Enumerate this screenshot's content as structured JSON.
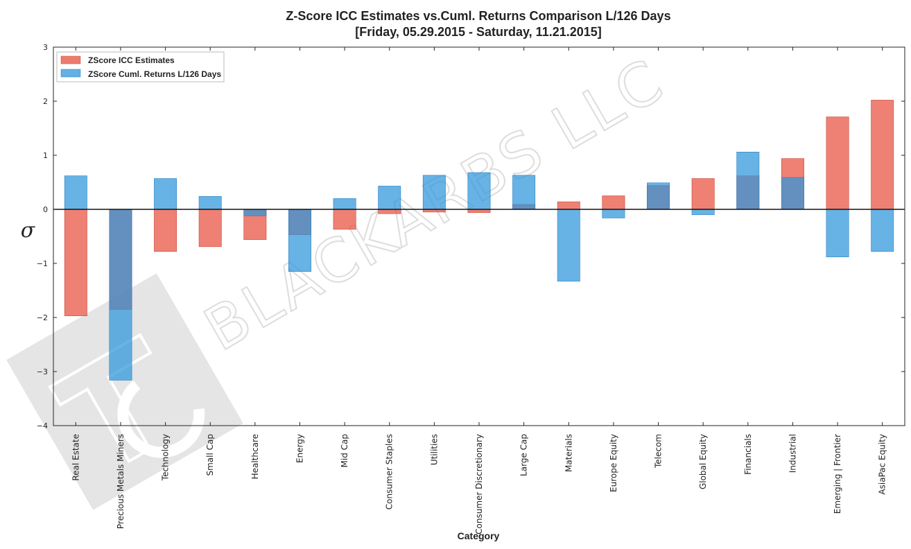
{
  "chart_data": {
    "type": "bar",
    "title_line1": "Z-Score ICC Estimates vs.Cuml. Returns Comparison L/126 Days",
    "title_line2": "[Friday, 05.29.2015 - Saturday, 11.21.2015]",
    "xlabel": "Category",
    "ylabel": "σ",
    "ylim": [
      -4,
      3
    ],
    "yticks": [
      -4,
      -3,
      -2,
      -1,
      0,
      1,
      2,
      3
    ],
    "grid": false,
    "legend_position": "top-left",
    "categories": [
      "Real Estate",
      "Precious Metals Miners",
      "Technology",
      "Small Cap",
      "Healthcare",
      "Energy",
      "Mid Cap",
      "Consumer Staples",
      "Utilities",
      "Consumer Discretionary",
      "Large Cap",
      "Materials",
      "Europe Equity",
      "Telecom",
      "Global Equity",
      "Financials",
      "Industrial",
      "Emerging | Frontier",
      "AsiaPac Equity"
    ],
    "series": [
      {
        "name": "ZScore ICC Estimates",
        "color": "#e8503e",
        "values": [
          -1.97,
          -1.85,
          -0.78,
          -0.69,
          -0.56,
          -0.47,
          -0.37,
          -0.08,
          -0.05,
          -0.06,
          0.09,
          0.14,
          0.25,
          0.44,
          0.57,
          0.62,
          0.94,
          1.71,
          2.02
        ]
      },
      {
        "name": "ZScore Cuml. Returns L/126 Days",
        "color": "#2e95db",
        "values": [
          0.62,
          -3.16,
          0.57,
          0.24,
          -0.12,
          -1.15,
          0.2,
          0.43,
          0.63,
          0.68,
          0.63,
          -1.33,
          -0.16,
          0.49,
          -0.1,
          1.06,
          0.59,
          -0.88,
          -0.78
        ]
      }
    ]
  },
  "watermark": {
    "text": "BLACKARBS LLC"
  }
}
